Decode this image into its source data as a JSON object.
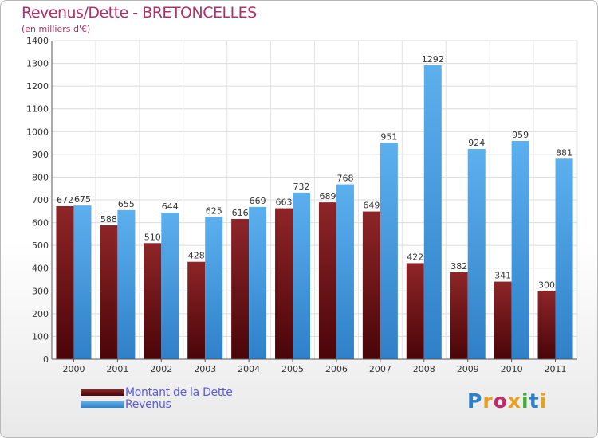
{
  "title": "Revenus/Dette - BRETONCELLES",
  "subtitle": "(en milliers d'€)",
  "legend": {
    "debt": "Montant de la Dette",
    "revenue": "Revenus"
  },
  "logo": "Proxiti",
  "colors": {
    "debt": "#7a1518",
    "revenue": "#4ea2e0",
    "title": "#b0306a",
    "legend_text": "#5a5ae0"
  },
  "chart_data": {
    "type": "bar",
    "title": "Revenus/Dette - BRETONCELLES",
    "ylabel": "(en milliers d'€)",
    "xlabel": "",
    "categories": [
      "2000",
      "2001",
      "2002",
      "2003",
      "2004",
      "2005",
      "2006",
      "2007",
      "2008",
      "2009",
      "2010",
      "2011"
    ],
    "series": [
      {
        "name": "Montant de la Dette",
        "values": [
          672,
          588,
          510,
          428,
          616,
          663,
          689,
          649,
          422,
          382,
          341,
          300
        ]
      },
      {
        "name": "Revenus",
        "values": [
          675,
          655,
          644,
          625,
          669,
          732,
          768,
          951,
          1292,
          924,
          959,
          881
        ]
      }
    ],
    "ylim": [
      0,
      1400
    ],
    "yticks": [
      0,
      100,
      200,
      300,
      400,
      500,
      600,
      700,
      800,
      900,
      1000,
      1100,
      1200,
      1300,
      1400
    ],
    "grid": true,
    "legend_position": "bottom-left"
  }
}
